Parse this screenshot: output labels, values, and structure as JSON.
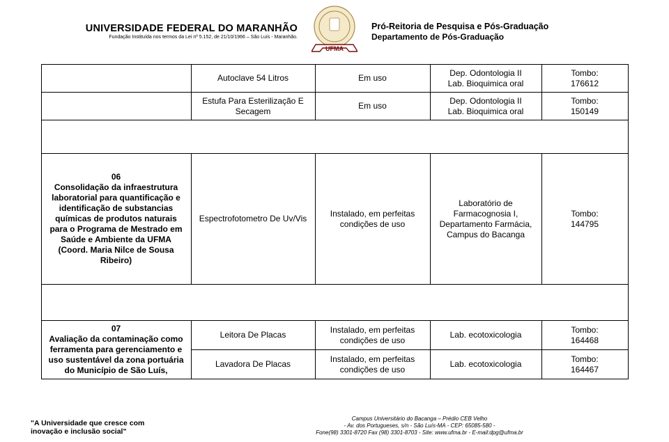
{
  "header": {
    "university": "UNIVERSIDADE FEDERAL DO MARANHÃO",
    "foundation": "Fundação Instituída nos termos da Lei nº 5.152, de 21/10/1966 – São Luís - Maranhão.",
    "right_line1": "Pró-Reitoria de Pesquisa e Pós-Graduação",
    "right_line2": "Departamento de Pós-Graduação",
    "logo": {
      "bg": "#f4e9c8",
      "ring": "#a8894a",
      "ribbon_border": "#7a0a0a",
      "ribbon_fill": "#ffffff",
      "text": "UFMA"
    }
  },
  "rows": {
    "r1": {
      "c2": "Autoclave 54 Litros",
      "c3": "Em uso",
      "c4": "Dep. Odontologia II\nLab. Bioquimica oral",
      "c5": "Tombo:\n176612"
    },
    "r2": {
      "c2": "Estufa Para Esterilização E Secagem",
      "c3": "Em uso",
      "c4": "Dep. Odontologia II\nLab. Bioquimica oral",
      "c5": "Tombo:\n150149"
    },
    "r3": {
      "c1": "06\nConsolidação da infraestrutura laboratorial para quantificação e identificação de substancias químicas de produtos naturais para o Programa de Mestrado em Saúde e Ambiente da UFMA (Coord. Maria Nilce de Sousa Ribeiro)",
      "c2": "Espectrofotometro De Uv/Vis",
      "c3": "Instalado, em perfeitas condições de uso",
      "c4": "Laboratório de Farmacognosia I, Departamento Farmácia, Campus do Bacanga",
      "c5": "Tombo:\n144795"
    },
    "r4": {
      "c1": "07\nAvaliação da contaminação como ferramenta para gerenciamento e uso sustentável da zona portuária do Município de São Luís,",
      "a": {
        "c2": "Leitora De Placas",
        "c3": "Instalado, em perfeitas condições de uso",
        "c4": "Lab. ecotoxicologia",
        "c5": "Tombo:\n164468"
      },
      "b": {
        "c2": "Lavadora De Placas",
        "c3": "Instalado, em perfeitas condições de uso",
        "c4": "Lab. ecotoxicologia",
        "c5": "Tombo:\n164467"
      }
    }
  },
  "footer": {
    "quote_l1": "\"A Universidade que cresce com",
    "quote_l2": "inovação e inclusão social\"",
    "addr_l1": "Campus Universitário do Bacanga – Prédio CEB Velho",
    "addr_l2": "- Av. dos Portugueses, s/n - São Luís-MA - CEP: 65085-580 -",
    "addr_l3": "Fone(98) 3301-8720 Fax (98) 3301-8703  -  Site: www.ufma.br  -  E-mail:dpg@ufma.br"
  }
}
